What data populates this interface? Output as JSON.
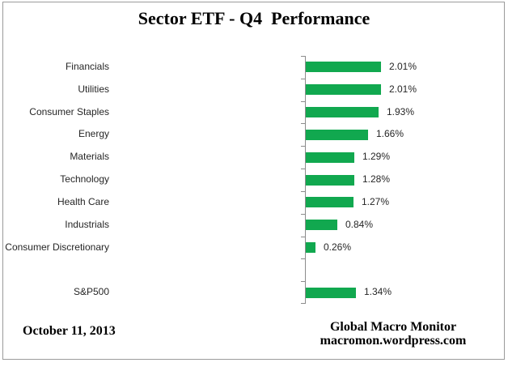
{
  "chart_data": {
    "type": "bar",
    "orientation": "horizontal",
    "title": "Sector ETF - Q4  Performance",
    "categories": [
      "Financials",
      "Utilities",
      "Consumer Staples",
      "Energy",
      "Materials",
      "Technology",
      "Health Care",
      "Industrials",
      "Consumer Discretionary",
      null,
      "S&P500"
    ],
    "values": [
      2.01,
      2.01,
      1.93,
      1.66,
      1.29,
      1.28,
      1.27,
      0.84,
      0.26,
      null,
      1.34
    ],
    "value_labels": [
      "2.01%",
      "2.01%",
      "1.93%",
      "1.66%",
      "1.29%",
      "1.28%",
      "1.27%",
      "0.84%",
      "0.26%",
      null,
      "1.34%"
    ],
    "xlim": [
      0,
      2.2
    ],
    "grid": false,
    "legend": false,
    "bar_color": "#11a84f",
    "axis_color": "#8c8c8c",
    "label_color": "#262626"
  },
  "footer": {
    "date": "October 11, 2013",
    "credit_line1": "Global Macro Monitor",
    "credit_line2": "macromon.wordpress.com"
  }
}
